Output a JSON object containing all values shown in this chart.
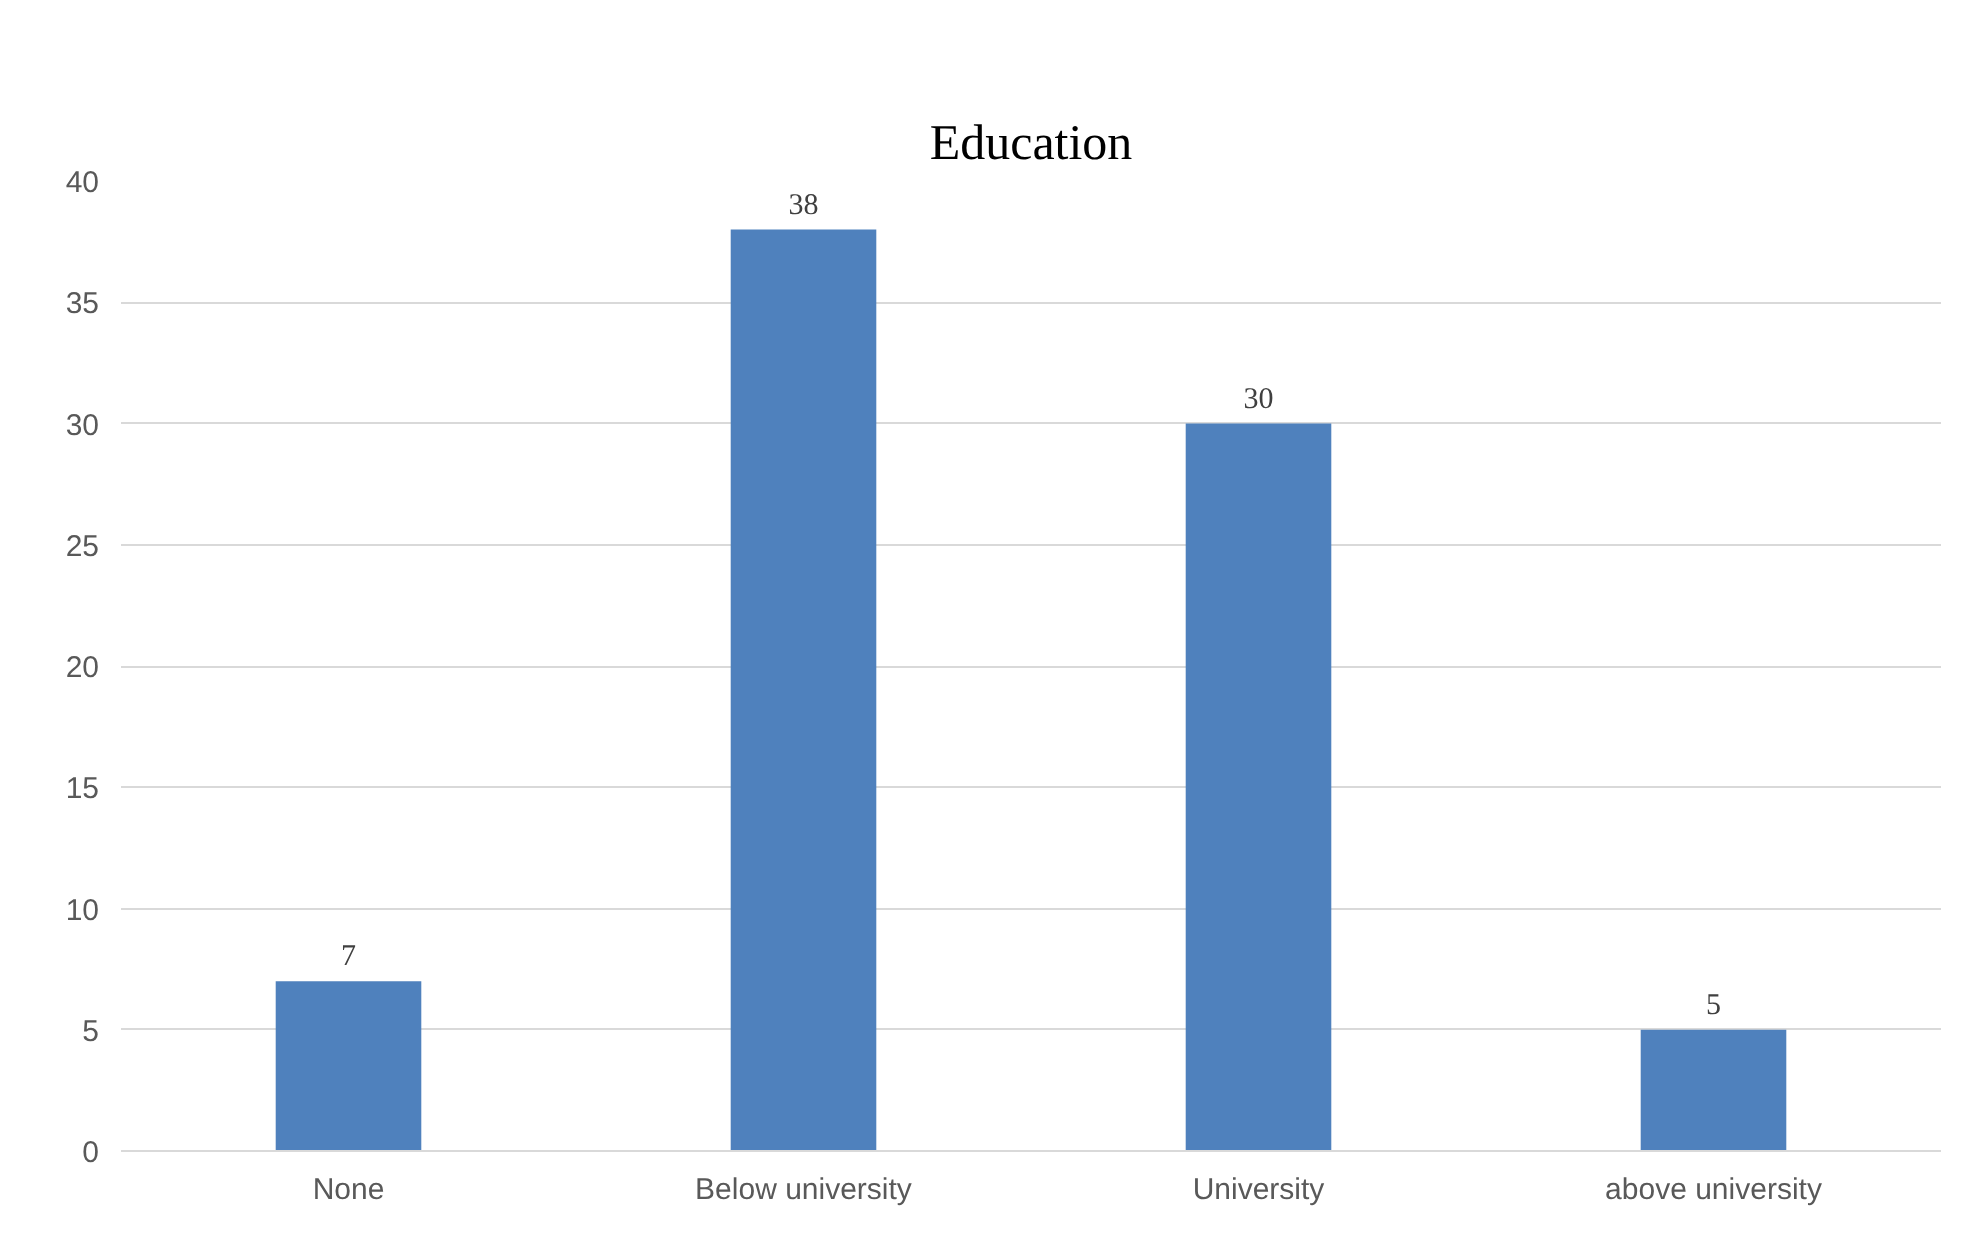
{
  "chart_data": {
    "type": "bar",
    "title": "Education",
    "categories": [
      "None",
      "Below university",
      "University",
      "above university"
    ],
    "values": [
      7,
      38,
      30,
      5
    ],
    "color": "#4f81bd",
    "ylim": [
      0,
      40
    ],
    "yticks": [
      0,
      5,
      10,
      15,
      20,
      25,
      30,
      35,
      40
    ],
    "grid": "y",
    "data_labels": true
  }
}
